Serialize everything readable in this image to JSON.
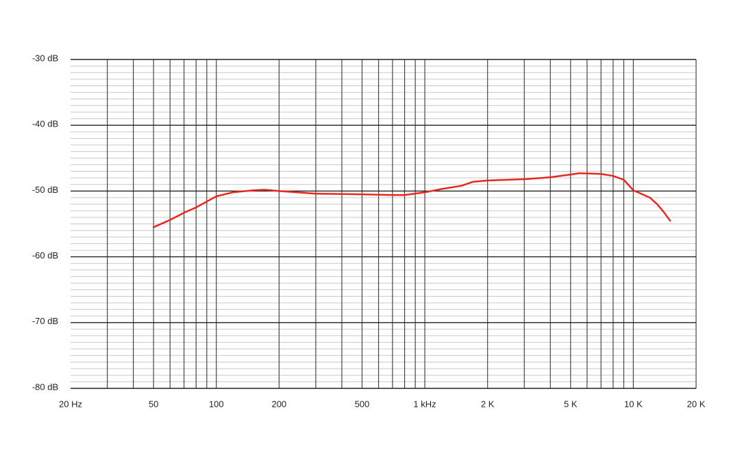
{
  "chart_data": {
    "type": "line",
    "x": [
      50,
      60,
      70,
      80,
      90,
      100,
      120,
      150,
      170,
      200,
      300,
      500,
      700,
      800,
      1000,
      1200,
      1500,
      1700,
      2000,
      3000,
      4000,
      5000,
      5500,
      7000,
      8000,
      9000,
      10000,
      12000,
      13000,
      14000,
      15000
    ],
    "series": [
      {
        "color": "#e8261c",
        "values": [
          -55.5,
          -54.4,
          -53.3,
          -52.5,
          -51.6,
          -50.8,
          -50.2,
          -49.9,
          -49.8,
          -50.0,
          -50.4,
          -50.5,
          -50.6,
          -50.6,
          -50.2,
          -49.7,
          -49.2,
          -48.6,
          -48.4,
          -48.2,
          -47.9,
          -47.5,
          -47.3,
          -47.4,
          -47.7,
          -48.3,
          -49.9,
          -51.0,
          -52.0,
          -53.2,
          -54.5
        ]
      }
    ],
    "xscale": "log",
    "xlim": [
      20,
      20000
    ],
    "xticks": [
      {
        "value": 20,
        "label": "20 Hz"
      },
      50,
      100,
      200,
      500,
      {
        "value": 1000,
        "label": "1 kHz"
      },
      {
        "value": 2000,
        "label": "2 K"
      },
      {
        "value": 5000,
        "label": "5 K"
      },
      {
        "value": 10000,
        "label": "10 K"
      },
      {
        "value": 20000,
        "label": "20 K"
      }
    ],
    "xgrid": [
      30,
      40,
      50,
      60,
      70,
      80,
      90,
      100,
      200,
      300,
      400,
      500,
      600,
      700,
      800,
      900,
      1000,
      2000,
      3000,
      4000,
      5000,
      6000,
      7000,
      8000,
      9000,
      10000,
      20000
    ],
    "ylim": [
      -80,
      -30
    ],
    "yticks": [
      {
        "value": -30,
        "label": "-30 dB"
      },
      {
        "value": -40,
        "label": "-40 dB"
      },
      {
        "value": -50,
        "label": "-50 dB"
      },
      {
        "value": -60,
        "label": "-60 dB"
      },
      {
        "value": -70,
        "label": "-70 dB"
      },
      {
        "value": -80,
        "label": "-80 dB"
      }
    ],
    "ygrid_step": 1
  }
}
